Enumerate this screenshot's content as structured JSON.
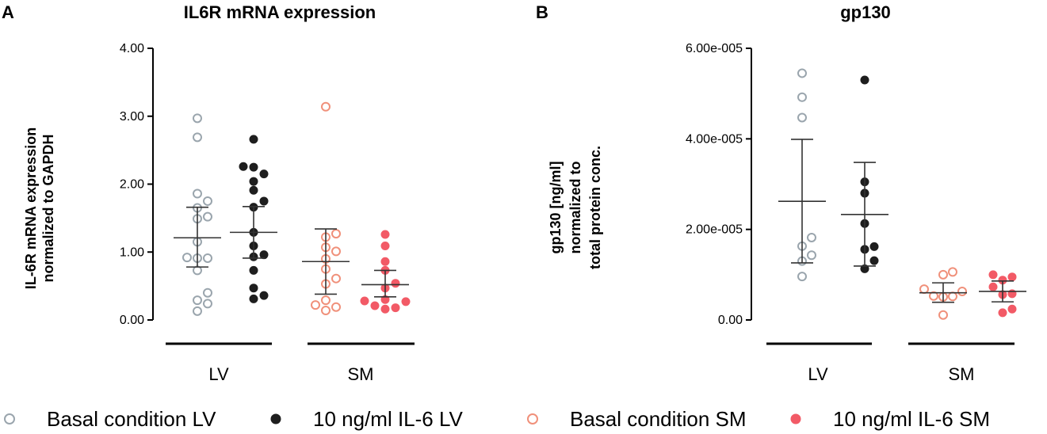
{
  "chart_data": [
    {
      "type": "scatter",
      "panel": "A",
      "title": "IL6R mRNA expression",
      "ylabel_lines": [
        "IL-6R mRNA expression",
        "normalized to GAPDH"
      ],
      "ylim": [
        0,
        4
      ],
      "yticks": [
        0,
        1,
        2,
        3,
        4
      ],
      "ytick_labels": [
        "0.00",
        "1.00",
        "2.00",
        "3.00",
        "4.00"
      ],
      "groups": [
        "LV",
        "SM"
      ],
      "series": [
        {
          "name": "Basal condition LV",
          "group": "LV",
          "color": "#9aa5ad",
          "filled": false,
          "values": [
            0.13,
            0.24,
            0.29,
            0.4,
            0.73,
            0.91,
            0.91,
            0.92,
            1.15,
            1.49,
            1.52,
            1.65,
            1.75,
            1.86,
            2.69,
            2.97
          ],
          "mean": 1.21,
          "err_low": 0.78,
          "err_high": 1.66
        },
        {
          "name": "10 ng/ml IL-6 LV",
          "group": "LV",
          "color": "#1e1e1e",
          "filled": true,
          "values": [
            0.31,
            0.36,
            0.47,
            0.73,
            0.93,
            0.96,
            1.09,
            1.29,
            1.66,
            1.75,
            1.91,
            2.04,
            2.15,
            2.25,
            2.26,
            2.66
          ],
          "mean": 1.29,
          "err_low": 0.91,
          "err_high": 1.67
        },
        {
          "name": "Basal condition SM",
          "group": "SM",
          "color": "#f0907a",
          "filled": false,
          "values": [
            0.14,
            0.19,
            0.22,
            0.29,
            0.53,
            0.61,
            0.75,
            0.9,
            1.01,
            1.07,
            1.22,
            1.27,
            3.14
          ],
          "mean": 0.86,
          "err_low": 0.38,
          "err_high": 1.34
        },
        {
          "name": "10 ng/ml IL-6 SM",
          "group": "SM",
          "color": "#f25a66",
          "filled": true,
          "values": [
            0.16,
            0.18,
            0.21,
            0.27,
            0.28,
            0.3,
            0.47,
            0.54,
            0.73,
            0.86,
            1.09,
            1.26
          ],
          "mean": 0.52,
          "err_low": 0.34,
          "err_high": 0.73
        }
      ]
    },
    {
      "type": "scatter",
      "panel": "B",
      "title": "gp130",
      "ylabel_lines": [
        "gp130 [ng/ml]",
        "normalized to",
        "total protein conc."
      ],
      "ylim": [
        0,
        6e-05
      ],
      "yticks": [
        0,
        2e-05,
        4e-05,
        6e-05
      ],
      "ytick_labels": [
        "0.00",
        "2.00e-005",
        "4.00e-005",
        "6.00e-005"
      ],
      "groups": [
        "LV",
        "SM"
      ],
      "series": [
        {
          "name": "Basal condition LV",
          "group": "LV",
          "color": "#9aa5ad",
          "filled": false,
          "values": [
            9.6e-06,
            1.3e-05,
            1.43e-05,
            1.63e-05,
            1.82e-05,
            4.47e-05,
            4.92e-05,
            5.45e-05
          ],
          "mean": 2.62e-05,
          "err_low": 1.26e-05,
          "err_high": 3.99e-05
        },
        {
          "name": "10 ng/ml IL-6 LV",
          "group": "LV",
          "color": "#1e1e1e",
          "filled": true,
          "values": [
            1.13e-05,
            1.31e-05,
            1.56e-05,
            1.62e-05,
            2.13e-05,
            2.8e-05,
            3.05e-05,
            5.3e-05
          ],
          "mean": 2.33e-05,
          "err_low": 1.19e-05,
          "err_high": 3.48e-05
        },
        {
          "name": "Basal condition SM",
          "group": "SM",
          "color": "#f0907a",
          "filled": false,
          "values": [
            1.1e-06,
            5.1e-06,
            5.2e-06,
            5.3e-06,
            6.3e-06,
            6.8e-06,
            1e-05,
            1.06e-05
          ],
          "mean": 6e-06,
          "err_low": 3.9e-06,
          "err_high": 8.2e-06
        },
        {
          "name": "10 ng/ml IL-6 SM",
          "group": "SM",
          "color": "#f25a66",
          "filled": true,
          "values": [
            1.6e-06,
            2.4e-06,
            5.6e-06,
            5.8e-06,
            7.3e-06,
            8.8e-06,
            9.5e-06,
            1e-05
          ],
          "mean": 6.3e-06,
          "err_low": 4e-06,
          "err_high": 8.6e-06
        }
      ]
    }
  ],
  "legend": [
    {
      "label": "Basal condition LV",
      "color": "#9aa5ad",
      "filled": false
    },
    {
      "label": "10 ng/ml IL-6 LV",
      "color": "#1e1e1e",
      "filled": true
    },
    {
      "label": "Basal condition SM",
      "color": "#f0907a",
      "filled": false
    },
    {
      "label": "10 ng/ml IL-6 SM",
      "color": "#f25a66",
      "filled": true
    }
  ]
}
